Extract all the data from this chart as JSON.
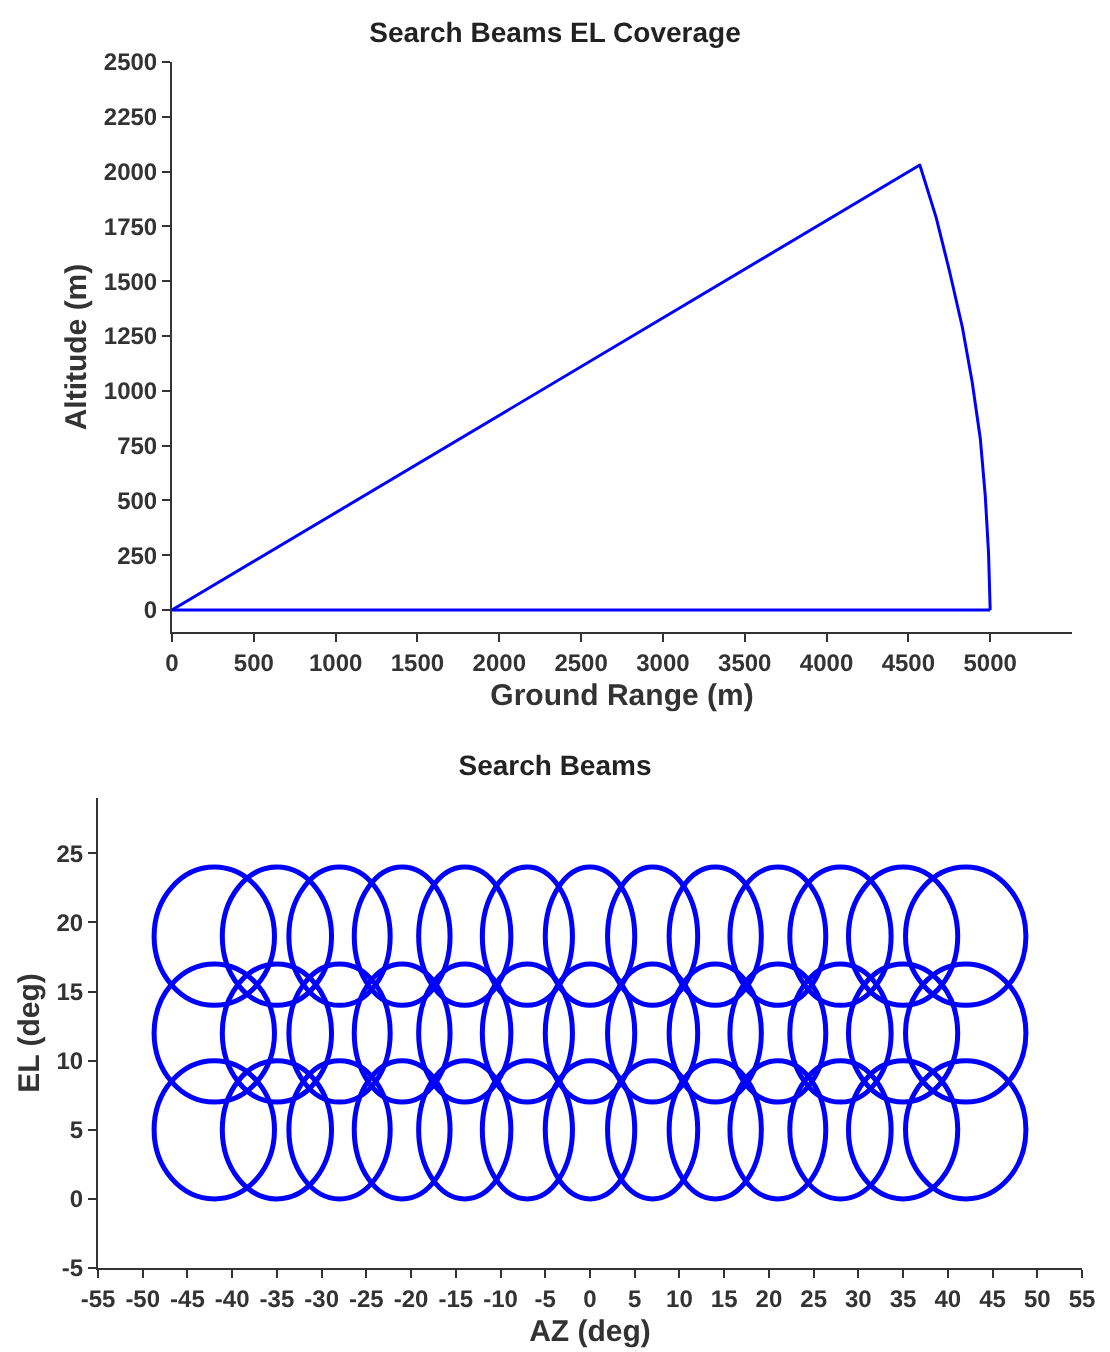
{
  "chart_data": [
    {
      "type": "line",
      "title": "Search Beams EL Coverage",
      "xlabel": "Ground Range (m)",
      "ylabel": "Altitude (m)",
      "series": [
        {
          "color": "#0000ff",
          "x": [
            0,
            4570,
            4670,
            4750,
            4830,
            4890,
            4940,
            4970,
            4990,
            5000
          ],
          "values": [
            0,
            2030,
            1790,
            1550,
            1290,
            1040,
            780,
            520,
            260,
            0
          ]
        },
        {
          "color": "#0000ff",
          "x": [
            0,
            5000
          ],
          "values": [
            0,
            0
          ]
        }
      ],
      "xlim": [
        0,
        5500
      ],
      "xticks": [
        0,
        500,
        1000,
        1500,
        2000,
        2500,
        3000,
        3500,
        4000,
        4500,
        5000
      ],
      "ylim": [
        -100,
        2500
      ],
      "yticks": [
        0,
        250,
        500,
        750,
        1000,
        1250,
        1500,
        1750,
        2000,
        2250,
        2500
      ]
    },
    {
      "type": "line",
      "title": "Search Beams",
      "xlabel": "AZ (deg)",
      "ylabel": "EL (deg)",
      "xlim": [
        -55,
        55
      ],
      "xticks": [
        -55,
        -50,
        -45,
        -40,
        -35,
        -30,
        -25,
        -20,
        -15,
        -10,
        -5,
        0,
        5,
        10,
        15,
        20,
        25,
        30,
        35,
        40,
        45,
        50,
        55
      ],
      "ylim": [
        -5,
        29
      ],
      "yticks": [
        -5,
        0,
        5,
        10,
        15,
        20,
        25
      ]
    }
  ]
}
